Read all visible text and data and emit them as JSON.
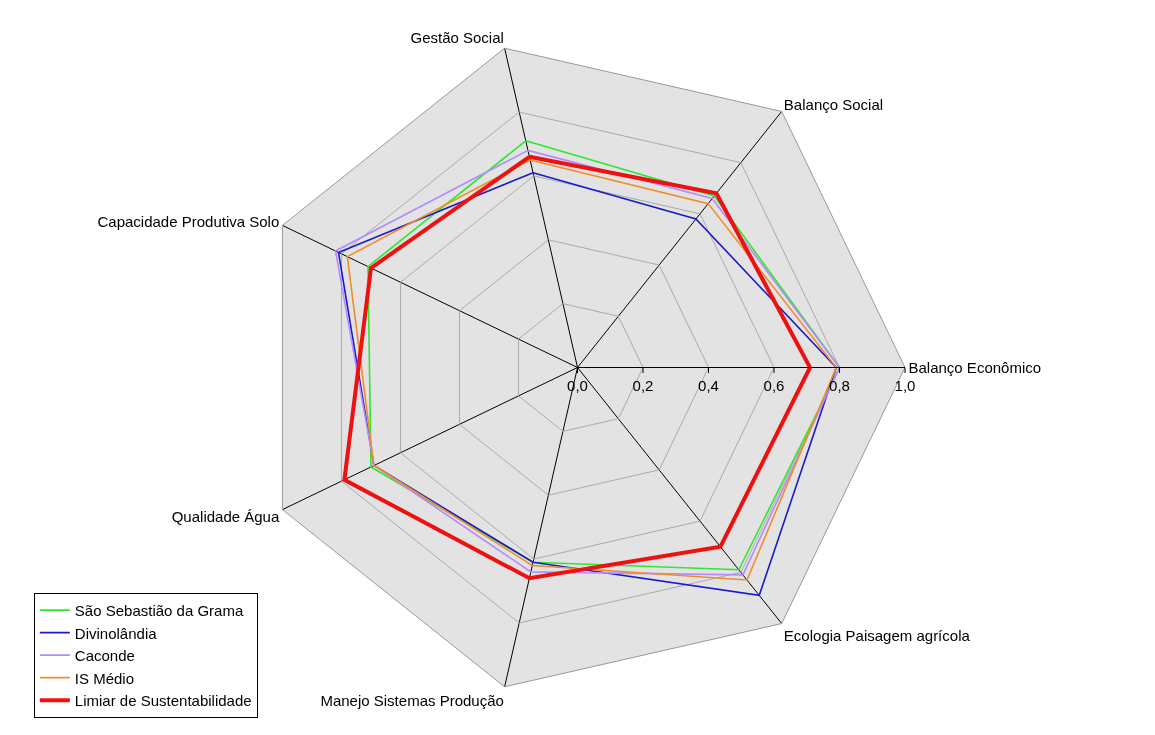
{
  "chart_data": {
    "type": "radar",
    "categories": [
      "Gestão Social",
      "Balanço Social",
      "Balanço Econômico",
      "Ecologia Paisagem agrícola",
      "Manejo Sistemas Produção",
      "Qualidade Água",
      "Capacidade Produtiva Solo"
    ],
    "series": [
      {
        "name": "São Sebastião da Grama",
        "color": "#2ee82e",
        "values": [
          0.71,
          0.67,
          0.8,
          0.79,
          0.61,
          0.7,
          0.71
        ]
      },
      {
        "name": "Divinolândia",
        "color": "#1a1acc",
        "values": [
          0.61,
          0.58,
          0.79,
          0.89,
          0.61,
          0.69,
          0.81
        ]
      },
      {
        "name": "Caconde",
        "color": "#b28cff",
        "values": [
          0.68,
          0.66,
          0.8,
          0.81,
          0.64,
          0.69,
          0.82
        ]
      },
      {
        "name": "IS Médio",
        "color": "#f28c28",
        "values": [
          0.65,
          0.64,
          0.79,
          0.83,
          0.62,
          0.69,
          0.78
        ]
      },
      {
        "name": "Limiar de Sustentabilidade",
        "color": "#ee1111",
        "values": [
          0.66,
          0.68,
          0.71,
          0.7,
          0.66,
          0.79,
          0.7
        ]
      }
    ],
    "ylim": [
      0,
      1
    ],
    "yticks": [
      {
        "value": 0,
        "label": "0,0"
      },
      {
        "value": 0.2,
        "label": "0,2"
      },
      {
        "value": 0.4,
        "label": "0,4"
      },
      {
        "value": 0.6,
        "label": "0,6"
      },
      {
        "value": 0.8,
        "label": "0,8"
      },
      {
        "value": 1,
        "label": "1,0"
      }
    ],
    "grid": true,
    "legend": "bottom left",
    "marker": "none",
    "line_style": "solid"
  }
}
